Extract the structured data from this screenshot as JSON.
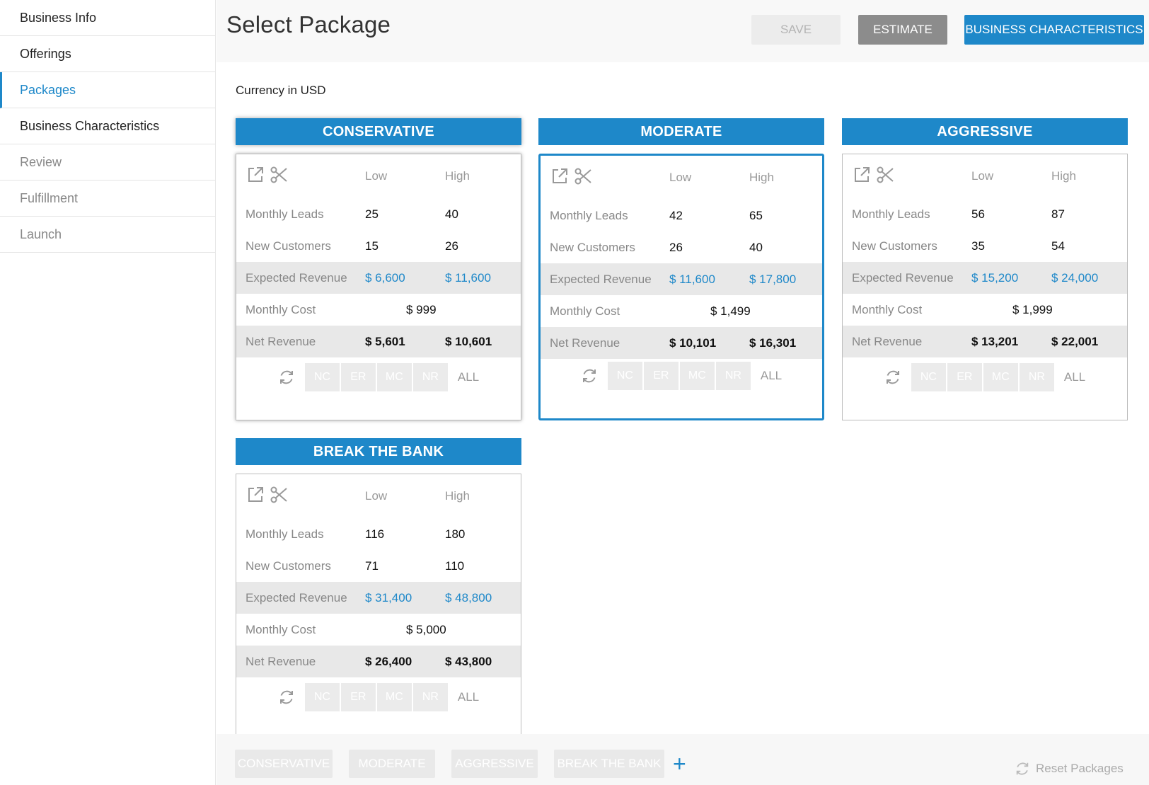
{
  "sidebar": {
    "items": [
      {
        "label": "Business Info"
      },
      {
        "label": "Offerings"
      },
      {
        "label": "Packages"
      },
      {
        "label": "Business Characteristics"
      },
      {
        "label": "Review"
      },
      {
        "label": "Fulfillment"
      },
      {
        "label": "Launch"
      }
    ]
  },
  "header": {
    "title": "Select Package",
    "save": "SAVE",
    "estimate": "ESTIMATE",
    "business_characteristics": "BUSINESS CHARACTERISTICS"
  },
  "currency": "Currency in USD",
  "labels": {
    "low": "Low",
    "high": "High",
    "monthly_leads": "Monthly Leads",
    "new_customers": "New Customers",
    "expected_revenue": "Expected Revenue",
    "monthly_cost": "Monthly Cost",
    "net_revenue": "Net Revenue"
  },
  "chips": [
    "NC",
    "ER",
    "MC",
    "NR"
  ],
  "chip_all": "ALL",
  "packages": [
    {
      "name": "CONSERVATIVE",
      "leads_low": "25",
      "leads_high": "40",
      "cust_low": "15",
      "cust_high": "26",
      "er_low": "$ 6,600",
      "er_high": "$ 11,600",
      "cost": "$ 999",
      "nr_low": "$ 5,601",
      "nr_high": "$ 10,601"
    },
    {
      "name": "MODERATE",
      "leads_low": "42",
      "leads_high": "65",
      "cust_low": "26",
      "cust_high": "40",
      "er_low": "$ 11,600",
      "er_high": "$ 17,800",
      "cost": "$ 1,499",
      "nr_low": "$ 10,101",
      "nr_high": "$ 16,301"
    },
    {
      "name": "AGGRESSIVE",
      "leads_low": "56",
      "leads_high": "87",
      "cust_low": "35",
      "cust_high": "54",
      "er_low": "$ 15,200",
      "er_high": "$ 24,000",
      "cost": "$ 1,999",
      "nr_low": "$ 13,201",
      "nr_high": "$ 22,001"
    },
    {
      "name": "BREAK THE BANK",
      "leads_low": "116",
      "leads_high": "180",
      "cust_low": "71",
      "cust_high": "110",
      "er_low": "$ 31,400",
      "er_high": "$ 48,800",
      "cost": "$ 5,000",
      "nr_low": "$ 26,400",
      "nr_high": "$ 43,800"
    }
  ],
  "bottom": {
    "tabs": [
      "CONSERVATIVE",
      "MODERATE",
      "AGGRESSIVE",
      "BREAK THE BANK"
    ],
    "reset": "Reset Packages"
  },
  "colors": {
    "accent": "#1e88c9"
  }
}
